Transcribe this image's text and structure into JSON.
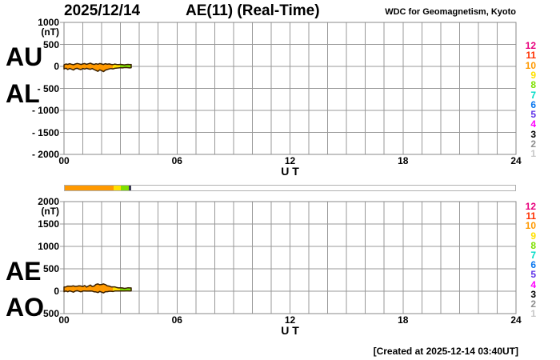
{
  "header": {
    "date": "2025/12/14",
    "title": "AE(11) (Real-Time)",
    "credit": "WDC for Geomagnetism, Kyoto"
  },
  "footer": {
    "created": "[Created at 2025-12-14 03:40UT]"
  },
  "station_count_legend": {
    "values": [
      "12",
      "11",
      "10",
      "9",
      "8",
      "7",
      "6",
      "5",
      "4",
      "3",
      "2",
      "1"
    ],
    "colors": [
      "#e8007d",
      "#ff3000",
      "#ff9900",
      "#ffe000",
      "#7fe000",
      "#00ddc8",
      "#0877f0",
      "#5f33e8",
      "#ff00ff",
      "#000000",
      "#909090",
      "#c8c8c8"
    ]
  },
  "status_bar": {
    "segments": [
      {
        "t_from": 0,
        "t_to": 2.6,
        "color": "#ff9900",
        "station_count": 10
      },
      {
        "t_from": 2.6,
        "t_to": 2.97,
        "color": "#ffe000",
        "station_count": 9
      },
      {
        "t_from": 2.97,
        "t_to": 3.42,
        "color": "#7fe000",
        "station_count": 8
      }
    ],
    "marker": {
      "t_from": 3.42,
      "t_to": 3.55,
      "color": "#3c3c55"
    }
  },
  "chart_data": [
    {
      "type": "area",
      "panel": "AU-AL",
      "left_labels": [
        "AU",
        "AL"
      ],
      "title": "AE(11) (Real-Time)",
      "date": "2025/12/14",
      "unit_label": "(nT)",
      "xlabel": "U T",
      "xlim": [
        0,
        24
      ],
      "ylim": [
        -2000,
        1000
      ],
      "grid": true,
      "x_tick_labels": [
        "00",
        "06",
        "12",
        "18",
        "24"
      ],
      "x_tick_hours": [
        0,
        6,
        12,
        18,
        24
      ],
      "y_tick_labels": [
        "1000",
        "500",
        "0",
        "- 500",
        "- 1000",
        "- 1500",
        "- 2000"
      ],
      "y_tick_values": [
        1000,
        500,
        0,
        -500,
        -1000,
        -1500,
        -2000
      ],
      "x_hours_ut": [
        0,
        0.1,
        0.2,
        0.3,
        0.4,
        0.5,
        0.6,
        0.7,
        0.8,
        0.9,
        1,
        1.1,
        1.2,
        1.3,
        1.4,
        1.5,
        1.6,
        1.7,
        1.8,
        1.9,
        2,
        2.1,
        2.2,
        2.3,
        2.4,
        2.5,
        2.6,
        2.7,
        2.8,
        2.9,
        3,
        3.1,
        3.2,
        3.3,
        3.4,
        3.5,
        3.57
      ],
      "series": [
        {
          "name": "AU",
          "values": [
            35,
            55,
            45,
            62,
            50,
            38,
            55,
            68,
            58,
            44,
            56,
            66,
            48,
            60,
            72,
            55,
            44,
            60,
            50,
            66,
            54,
            44,
            62,
            50,
            56,
            46,
            40,
            52,
            44,
            40,
            46,
            40,
            34,
            42,
            46,
            40,
            44
          ]
        },
        {
          "name": "AL",
          "values": [
            -58,
            -42,
            -70,
            -48,
            -62,
            -82,
            -52,
            -44,
            -62,
            -72,
            -48,
            -60,
            -44,
            -56,
            -66,
            -50,
            -72,
            -92,
            -112,
            -78,
            -96,
            -118,
            -84,
            -70,
            -58,
            -50,
            -56,
            -44,
            -38,
            -34,
            -30,
            -34,
            -28,
            -26,
            -30,
            -34,
            -30
          ]
        }
      ],
      "band_color_segments": [
        {
          "t_from": 0,
          "t_to": 2.6,
          "color": "#ff9900"
        },
        {
          "t_from": 2.6,
          "t_to": 2.97,
          "color": "#ffe000"
        },
        {
          "t_from": 2.97,
          "t_to": 3.57,
          "color": "#7fe000"
        }
      ]
    },
    {
      "type": "area",
      "panel": "AE-AO",
      "left_labels": [
        "AE",
        "AO"
      ],
      "unit_label": "(nT)",
      "xlabel": "U T",
      "xlim": [
        0,
        24
      ],
      "ylim": [
        -500,
        2000
      ],
      "grid": true,
      "x_tick_labels": [
        "00",
        "06",
        "12",
        "18",
        "24"
      ],
      "x_tick_hours": [
        0,
        6,
        12,
        18,
        24
      ],
      "y_tick_labels": [
        "2000",
        "1500",
        "1000",
        "500",
        "0",
        "- 500"
      ],
      "y_tick_values": [
        2000,
        1500,
        1000,
        500,
        0,
        -500
      ],
      "x_hours_ut": [
        0,
        0.1,
        0.2,
        0.3,
        0.4,
        0.5,
        0.6,
        0.7,
        0.8,
        0.9,
        1,
        1.1,
        1.2,
        1.3,
        1.4,
        1.5,
        1.6,
        1.7,
        1.8,
        1.9,
        2,
        2.1,
        2.2,
        2.3,
        2.4,
        2.5,
        2.6,
        2.7,
        2.8,
        2.9,
        3,
        3.1,
        3.2,
        3.3,
        3.4,
        3.5,
        3.57
      ],
      "series": [
        {
          "name": "AE",
          "values": [
            93,
            97,
            115,
            110,
            112,
            120,
            107,
            112,
            120,
            116,
            104,
            126,
            92,
            116,
            138,
            105,
            116,
            152,
            162,
            144,
            150,
            162,
            146,
            120,
            114,
            96,
            96,
            96,
            82,
            74,
            76,
            74,
            62,
            68,
            76,
            74,
            74
          ]
        },
        {
          "name": "AO",
          "values": [
            -12,
            6,
            -12,
            7,
            -6,
            -22,
            2,
            12,
            -2,
            -14,
            4,
            3,
            2,
            2,
            3,
            2,
            -14,
            -16,
            -31,
            -6,
            -21,
            -37,
            -11,
            -10,
            -1,
            -2,
            -8,
            4,
            3,
            3,
            8,
            3,
            3,
            8,
            8,
            3,
            7
          ]
        }
      ],
      "band_color_segments": [
        {
          "t_from": 0,
          "t_to": 2.6,
          "color": "#ff9900"
        },
        {
          "t_from": 2.6,
          "t_to": 2.97,
          "color": "#ffe000"
        },
        {
          "t_from": 2.97,
          "t_to": 3.57,
          "color": "#7fe000"
        }
      ]
    }
  ]
}
